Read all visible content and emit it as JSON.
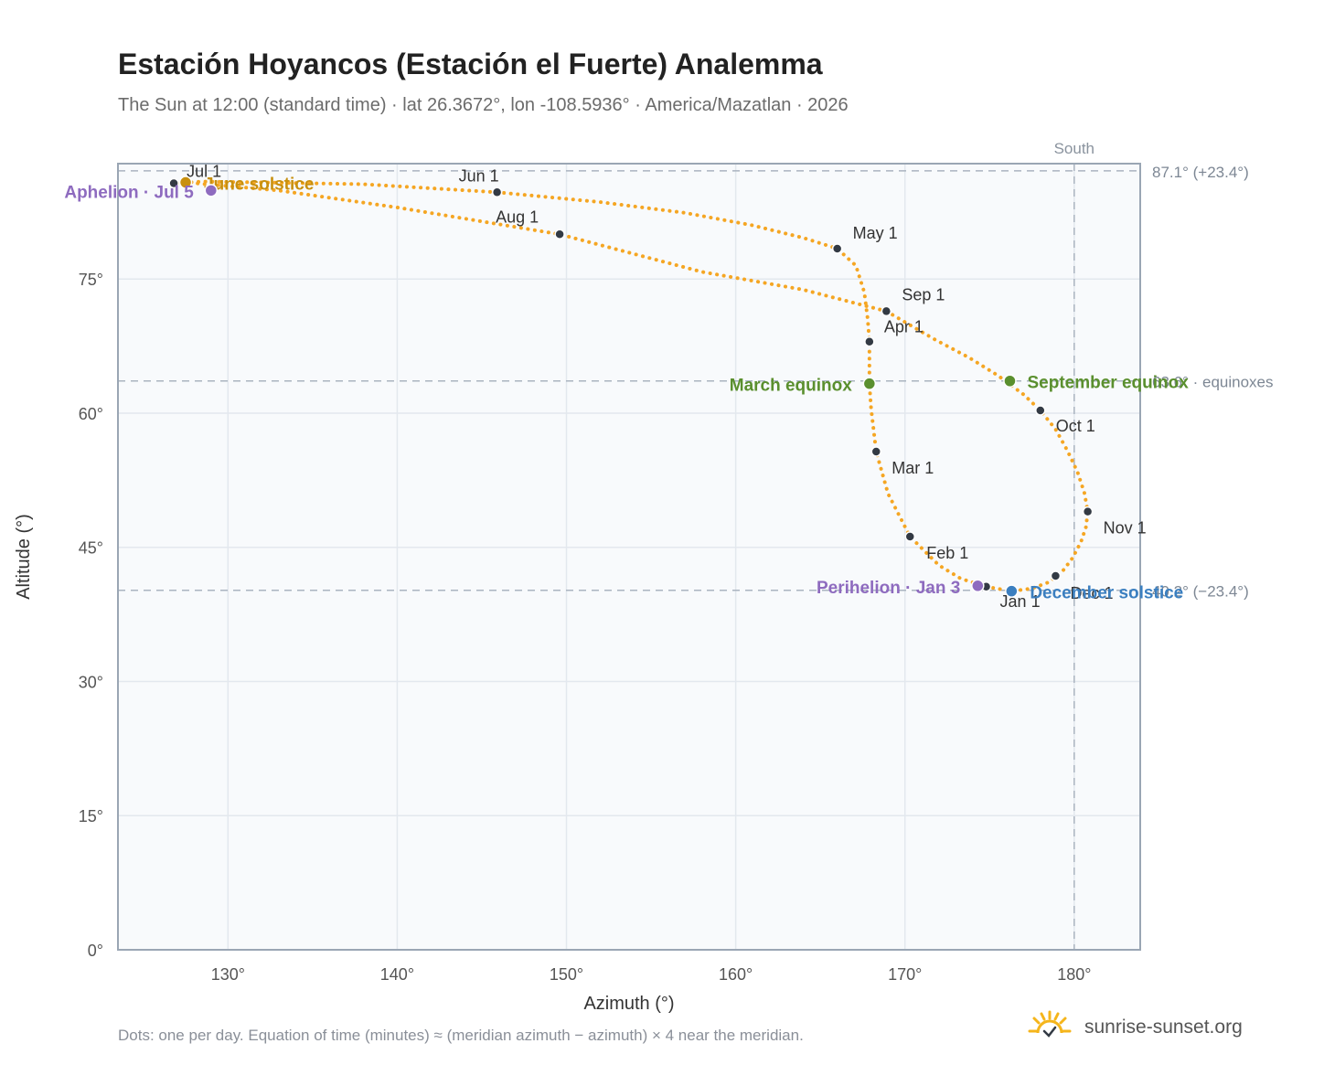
{
  "header": {
    "title": "Estación Hoyancos (Estación el Fuerte) Analemma",
    "subtitle": "The Sun at 12:00 (standard time) · lat 26.3672°, lon -108.5936° · America/Mazatlan · 2026"
  },
  "footer": {
    "note": "Dots: one per day. Equation of time (minutes) ≈ (meridian azimuth − azimuth) × 4 near the meridian.",
    "brand": "sunrise-sunset.org"
  },
  "colors": {
    "curve": "#f5a623",
    "month_dot": "#333a44",
    "solstice_june": "#c8900f",
    "equinox": "#5a8f2e",
    "solstice_december": "#3b7fc0",
    "perihelion_aphelion": "#8e6bbf",
    "plot_bg": "#f8fafc",
    "grid": "#e3e8ee",
    "reference_line": "#aab4c0"
  },
  "chart_data": {
    "type": "scatter",
    "xlabel": "Azimuth (°)",
    "ylabel": "Altitude (°)",
    "xlim": [
      123.5,
      183.9
    ],
    "ylim": [
      0,
      87.9
    ],
    "xticks": [
      130,
      140,
      150,
      160,
      170,
      180
    ],
    "xtick_labels": [
      "130°",
      "140°",
      "150°",
      "160°",
      "170°",
      "180°"
    ],
    "yticks": [
      0,
      15,
      30,
      45,
      60,
      75
    ],
    "ytick_labels": [
      "0°",
      "15°",
      "30°",
      "45°",
      "60°",
      "75°"
    ],
    "grid": true,
    "meridian": {
      "azimuth": 180,
      "label": "South"
    },
    "reference_lines": [
      {
        "altitude": 87.1,
        "label": "87.1° (+23.4°)"
      },
      {
        "altitude": 63.6,
        "label": "63.6° · equinoxes"
      },
      {
        "altitude": 40.2,
        "label": "40.2° (−23.4°)"
      }
    ],
    "analemma_points": [
      [
        174.8,
        40.6
      ],
      [
        176.3,
        40.1
      ],
      [
        177.5,
        40.4
      ],
      [
        178.5,
        41.1
      ],
      [
        179.3,
        42.3
      ],
      [
        179.9,
        43.8
      ],
      [
        180.4,
        45.6
      ],
      [
        180.7,
        47.3
      ],
      [
        180.8,
        49.0
      ],
      [
        180.6,
        51.1
      ],
      [
        180.2,
        53.4
      ],
      [
        179.6,
        55.8
      ],
      [
        178.9,
        58.2
      ],
      [
        178.0,
        60.3
      ],
      [
        177.0,
        62.1
      ],
      [
        175.5,
        64.2
      ],
      [
        173.8,
        66.2
      ],
      [
        171.8,
        68.2
      ],
      [
        168.9,
        71.4
      ],
      [
        164.0,
        73.8
      ],
      [
        158.0,
        75.8
      ],
      [
        149.6,
        80.0
      ],
      [
        140.0,
        83.0
      ],
      [
        133.0,
        84.9
      ],
      [
        127.5,
        85.8
      ],
      [
        126.8,
        85.7
      ],
      [
        128.5,
        85.9
      ],
      [
        132.0,
        85.8
      ],
      [
        138.0,
        85.6
      ],
      [
        145.9,
        84.7
      ],
      [
        152.0,
        83.6
      ],
      [
        157.0,
        82.4
      ],
      [
        161.0,
        81.0
      ],
      [
        164.0,
        79.6
      ],
      [
        166.0,
        78.4
      ],
      [
        167.1,
        76.5
      ],
      [
        167.6,
        73.5
      ],
      [
        167.8,
        70.5
      ],
      [
        167.9,
        68.0
      ],
      [
        167.9,
        65.5
      ],
      [
        167.9,
        63.3
      ],
      [
        168.0,
        60.5
      ],
      [
        168.3,
        55.7
      ],
      [
        169.0,
        51.0
      ],
      [
        170.3,
        46.2
      ],
      [
        172.0,
        43.0
      ],
      [
        173.3,
        41.5
      ],
      [
        174.8,
        40.6
      ]
    ],
    "month_points": [
      {
        "label": "Jan 1",
        "az": 174.8,
        "alt": 40.6
      },
      {
        "label": "Feb 1",
        "az": 170.3,
        "alt": 46.2
      },
      {
        "label": "Mar 1",
        "az": 168.3,
        "alt": 55.7
      },
      {
        "label": "Apr 1",
        "az": 167.9,
        "alt": 68.0
      },
      {
        "label": "May 1",
        "az": 166.0,
        "alt": 78.4
      },
      {
        "label": "Jun 1",
        "az": 145.9,
        "alt": 84.7
      },
      {
        "label": "Jul 1",
        "az": 126.8,
        "alt": 85.7
      },
      {
        "label": "Aug 1",
        "az": 149.6,
        "alt": 80.0
      },
      {
        "label": "Sep 1",
        "az": 168.9,
        "alt": 71.4
      },
      {
        "label": "Oct 1",
        "az": 178.0,
        "alt": 60.3
      },
      {
        "label": "Nov 1",
        "az": 180.8,
        "alt": 49.0
      },
      {
        "label": "Dec 1",
        "az": 178.9,
        "alt": 41.8
      }
    ],
    "events": [
      {
        "label": "June solstice",
        "az": 127.5,
        "alt": 85.8,
        "color": "#c8900f"
      },
      {
        "label": "Aphelion · Jul 5",
        "az": 129.0,
        "alt": 84.9,
        "color": "#8e6bbf"
      },
      {
        "label": "March equinox",
        "az": 167.9,
        "alt": 63.3,
        "color": "#5a8f2e"
      },
      {
        "label": "September equinox",
        "az": 176.2,
        "alt": 63.6,
        "color": "#5a8f2e"
      },
      {
        "label": "Perihelion · Jan 3",
        "az": 174.3,
        "alt": 40.7,
        "color": "#8e6bbf"
      },
      {
        "label": "December solstice",
        "az": 176.3,
        "alt": 40.1,
        "color": "#3b7fc0"
      }
    ]
  }
}
